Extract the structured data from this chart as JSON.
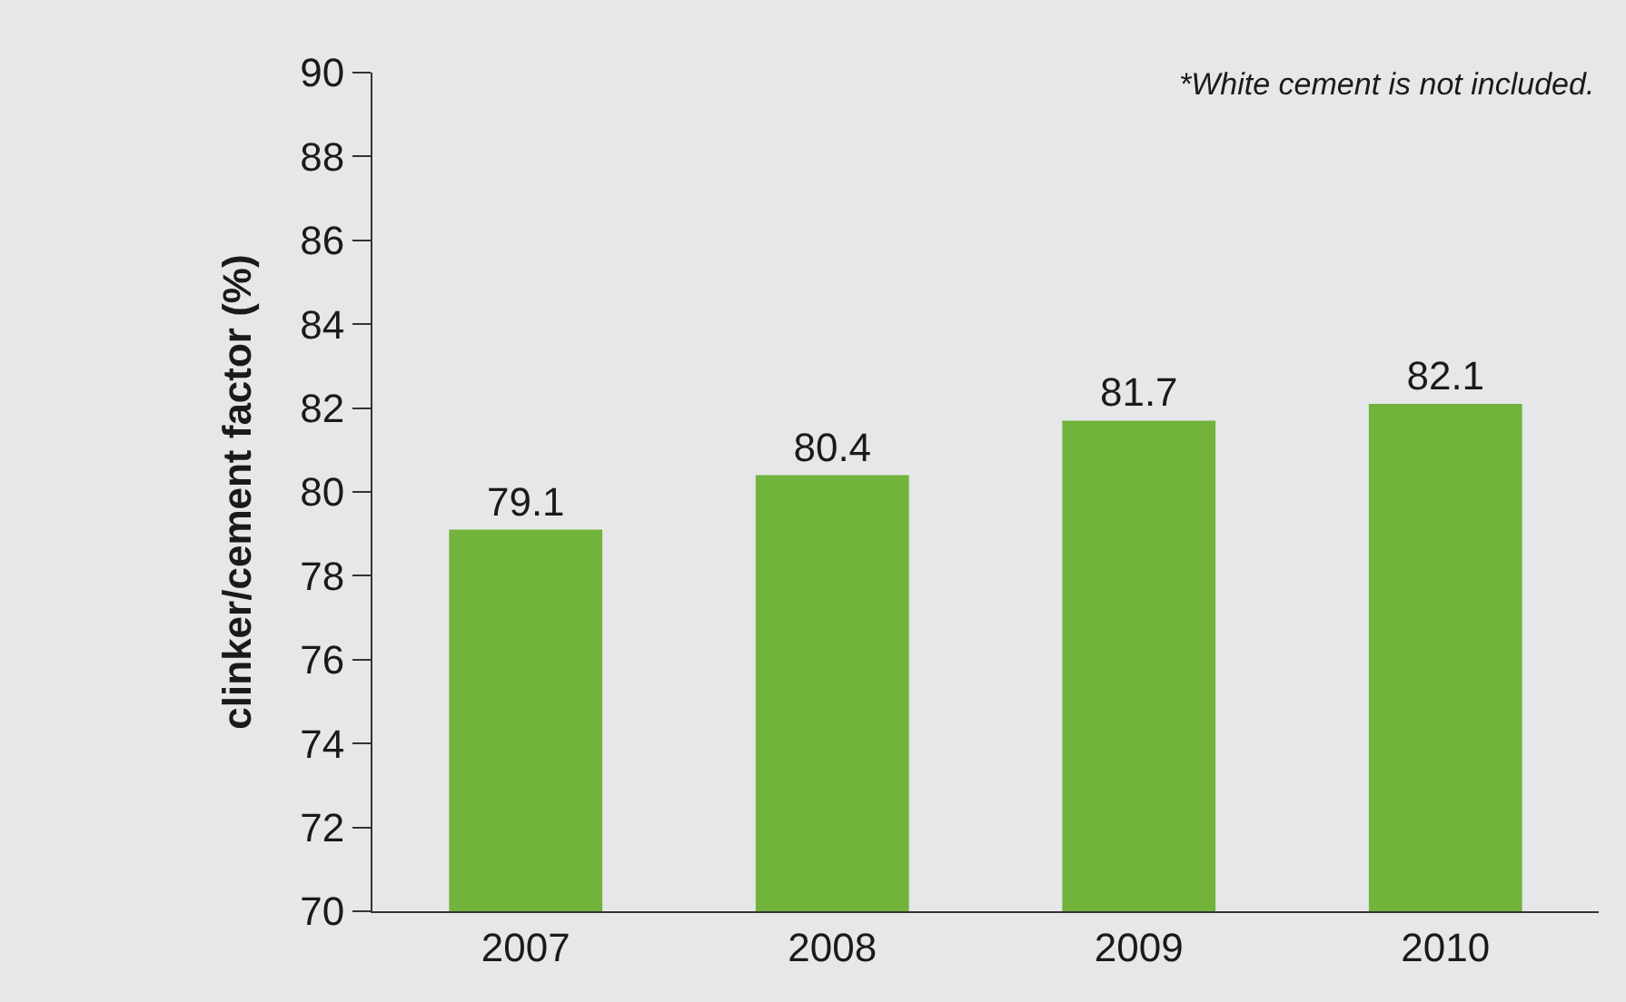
{
  "chart_data": {
    "type": "bar",
    "ylabel": "clinker/cement factor (%)",
    "categories": [
      "2007",
      "2008",
      "2009",
      "2010"
    ],
    "values": [
      79.1,
      80.4,
      81.7,
      82.1
    ],
    "color": "#72b33c",
    "ylim": [
      70,
      90
    ],
    "yticks": [
      70,
      72,
      74,
      76,
      78,
      80,
      82,
      84,
      86,
      88,
      90
    ],
    "grid": false,
    "data_labels": true,
    "annotations": [
      "*White cement is not included."
    ]
  }
}
